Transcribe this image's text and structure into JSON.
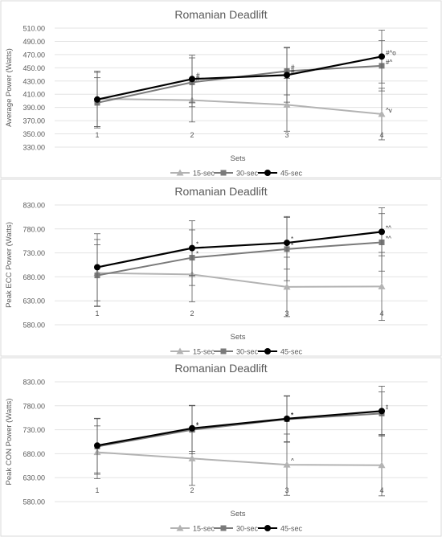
{
  "chart_data": [
    {
      "type": "line",
      "title": "Romanian Deadlift",
      "xlabel": "Sets",
      "ylabel": "Average Power (Watts)",
      "categories": [
        "1",
        "2",
        "3",
        "4"
      ],
      "ylim": [
        330,
        510
      ],
      "yticks": [
        "330.00",
        "350.00",
        "370.00",
        "390.00",
        "410.00",
        "430.00",
        "450.00",
        "470.00",
        "490.00",
        "510.00"
      ],
      "grid": true,
      "legend_position": "bottom",
      "series": [
        {
          "name": "15-sec",
          "values": [
            403,
            401,
            394,
            380
          ],
          "errors": [
            42,
            33,
            40,
            39
          ],
          "marker": "triangle",
          "color": "#b3b3b3",
          "annotations": [
            "",
            "",
            "",
            "^v"
          ]
        },
        {
          "name": "30-sec",
          "values": [
            397,
            428,
            445,
            453
          ],
          "errors": [
            38,
            37,
            36,
            38
          ],
          "marker": "square",
          "color": "#7a7a7a",
          "annotations": [
            "",
            "#",
            "#",
            "#^"
          ]
        },
        {
          "name": "45-sec",
          "values": [
            402,
            433,
            439,
            467
          ],
          "errors": [
            41,
            36,
            41,
            40
          ],
          "marker": "circle",
          "color": "#000000",
          "annotations": [
            "",
            "#",
            "#",
            "#^o"
          ]
        }
      ]
    },
    {
      "type": "line",
      "title": "Romanian Deadlift",
      "xlabel": "Sets",
      "ylabel": "Peak ECC Power (Watts)",
      "categories": [
        "1",
        "2",
        "3",
        "4"
      ],
      "ylim": [
        580,
        830
      ],
      "yticks": [
        "580.00",
        "630.00",
        "680.00",
        "730.00",
        "780.00",
        "830.00"
      ],
      "grid": true,
      "legend_position": "bottom",
      "series": [
        {
          "name": "15-sec",
          "values": [
            688,
            685,
            659,
            660
          ],
          "errors": [
            70,
            57,
            62,
            71
          ],
          "marker": "triangle",
          "color": "#b3b3b3",
          "annotations": [
            "",
            "",
            "",
            ""
          ]
        },
        {
          "name": "30-sec",
          "values": [
            683,
            720,
            738,
            752
          ],
          "errors": [
            64,
            58,
            66,
            60
          ],
          "marker": "square",
          "color": "#7a7a7a",
          "annotations": [
            "",
            "*",
            "*",
            "*^"
          ]
        },
        {
          "name": "45-sec",
          "values": [
            700,
            740,
            751,
            774
          ],
          "errors": [
            70,
            57,
            55,
            50
          ],
          "marker": "circle",
          "color": "#000000",
          "annotations": [
            "",
            "*",
            "*",
            "*^"
          ]
        }
      ]
    },
    {
      "type": "line",
      "title": "Romanian Deadlift",
      "xlabel": "Sets",
      "ylabel": "Peak CON Power (Watts)",
      "categories": [
        "1",
        "2",
        "3",
        "4"
      ],
      "ylim": [
        580,
        830
      ],
      "yticks": [
        "580.00",
        "630.00",
        "680.00",
        "730.00",
        "780.00",
        "830.00"
      ],
      "grid": true,
      "legend_position": "bottom",
      "series": [
        {
          "name": "15-sec",
          "values": [
            683,
            670,
            657,
            656
          ],
          "errors": [
            55,
            56,
            64,
            64
          ],
          "marker": "triangle",
          "color": "#b3b3b3",
          "annotations": [
            "",
            "",
            "^",
            ""
          ]
        },
        {
          "name": "30-sec",
          "values": [
            695,
            730,
            752,
            764
          ],
          "errors": [
            58,
            50,
            48,
            45
          ],
          "marker": "square",
          "color": "#7a7a7a",
          "annotations": [
            "",
            "*",
            "*",
            "*"
          ]
        },
        {
          "name": "45-sec",
          "values": [
            697,
            733,
            753,
            769
          ],
          "errors": [
            57,
            48,
            48,
            52
          ],
          "marker": "circle",
          "color": "#000000",
          "annotations": [
            "",
            "*",
            "*",
            "*"
          ]
        }
      ]
    }
  ]
}
